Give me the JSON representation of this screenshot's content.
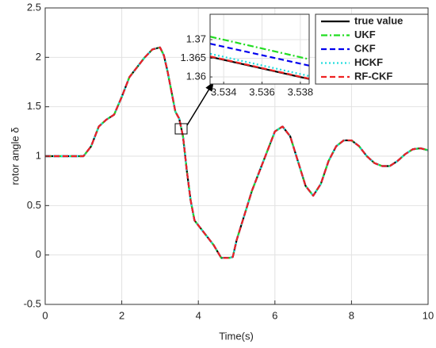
{
  "chart_data": [
    {
      "type": "line",
      "xlabel": "Time(s)",
      "ylabel": "rotor angle δ",
      "x": [
        0,
        0.5,
        1,
        1.2,
        1.4,
        1.6,
        1.8,
        2.0,
        2.2,
        2.4,
        2.6,
        2.8,
        3.0,
        3.1,
        3.2,
        3.3,
        3.4,
        3.5,
        3.6,
        3.7,
        3.8,
        3.9,
        4.0,
        4.2,
        4.4,
        4.6,
        4.8,
        4.9,
        5.0,
        5.2,
        5.4,
        5.6,
        5.8,
        6.0,
        6.2,
        6.4,
        6.6,
        6.8,
        7.0,
        7.2,
        7.4,
        7.6,
        7.8,
        8.0,
        8.2,
        8.4,
        8.6,
        8.8,
        9.0,
        9.2,
        9.4,
        9.6,
        9.8,
        10
      ],
      "series": [
        {
          "name": "true value",
          "color": "#000000",
          "linestyle": "solid",
          "values": [
            1,
            1,
            1.0,
            1.1,
            1.3,
            1.37,
            1.42,
            1.6,
            1.8,
            1.9,
            2.0,
            2.08,
            2.1,
            2.02,
            1.85,
            1.65,
            1.45,
            1.38,
            1.2,
            0.85,
            0.55,
            0.35,
            0.3,
            0.2,
            0.1,
            -0.03,
            -0.03,
            -0.02,
            0.15,
            0.4,
            0.65,
            0.85,
            1.05,
            1.25,
            1.3,
            1.2,
            0.95,
            0.7,
            0.6,
            0.72,
            0.95,
            1.1,
            1.16,
            1.16,
            1.1,
            1.0,
            0.93,
            0.9,
            0.9,
            0.95,
            1.02,
            1.07,
            1.08,
            1.06
          ]
        },
        {
          "name": "UKF",
          "color": "#22dd22",
          "linestyle": "dashdot",
          "values": [
            1,
            1,
            1.0,
            1.1,
            1.3,
            1.37,
            1.42,
            1.6,
            1.8,
            1.9,
            2.0,
            2.08,
            2.1,
            2.02,
            1.85,
            1.65,
            1.45,
            1.38,
            1.2,
            0.85,
            0.55,
            0.35,
            0.3,
            0.2,
            0.1,
            -0.03,
            -0.03,
            -0.02,
            0.15,
            0.4,
            0.65,
            0.85,
            1.05,
            1.25,
            1.3,
            1.2,
            0.95,
            0.7,
            0.6,
            0.72,
            0.95,
            1.1,
            1.16,
            1.16,
            1.1,
            1.0,
            0.93,
            0.9,
            0.9,
            0.95,
            1.02,
            1.07,
            1.08,
            1.06
          ]
        },
        {
          "name": "CKF",
          "color": "#0000ee",
          "linestyle": "dashed",
          "values": [
            1,
            1,
            1.0,
            1.1,
            1.3,
            1.37,
            1.42,
            1.6,
            1.8,
            1.9,
            2.0,
            2.08,
            2.1,
            2.02,
            1.85,
            1.65,
            1.45,
            1.38,
            1.2,
            0.85,
            0.55,
            0.35,
            0.3,
            0.2,
            0.1,
            -0.03,
            -0.03,
            -0.02,
            0.15,
            0.4,
            0.65,
            0.85,
            1.05,
            1.25,
            1.3,
            1.2,
            0.95,
            0.7,
            0.6,
            0.72,
            0.95,
            1.1,
            1.16,
            1.16,
            1.1,
            1.0,
            0.93,
            0.9,
            0.9,
            0.95,
            1.02,
            1.07,
            1.08,
            1.06
          ]
        },
        {
          "name": "HCKF",
          "color": "#22dddd",
          "linestyle": "dotted",
          "values": [
            1,
            1,
            1.0,
            1.1,
            1.3,
            1.37,
            1.42,
            1.6,
            1.8,
            1.9,
            2.0,
            2.08,
            2.1,
            2.02,
            1.85,
            1.65,
            1.45,
            1.38,
            1.2,
            0.85,
            0.55,
            0.35,
            0.3,
            0.2,
            0.1,
            -0.03,
            -0.03,
            -0.02,
            0.15,
            0.4,
            0.65,
            0.85,
            1.05,
            1.25,
            1.3,
            1.2,
            0.95,
            0.7,
            0.6,
            0.72,
            0.95,
            1.1,
            1.16,
            1.16,
            1.1,
            1.0,
            0.93,
            0.9,
            0.9,
            0.95,
            1.02,
            1.07,
            1.08,
            1.06
          ]
        },
        {
          "name": "RF-CKF",
          "color": "#ee2222",
          "linestyle": "dashed",
          "values": [
            1,
            1,
            1.0,
            1.1,
            1.3,
            1.37,
            1.42,
            1.6,
            1.8,
            1.9,
            2.0,
            2.08,
            2.1,
            2.02,
            1.85,
            1.65,
            1.45,
            1.38,
            1.2,
            0.85,
            0.55,
            0.35,
            0.3,
            0.2,
            0.1,
            -0.03,
            -0.03,
            -0.02,
            0.15,
            0.4,
            0.65,
            0.85,
            1.05,
            1.25,
            1.3,
            1.2,
            0.95,
            0.7,
            0.6,
            0.72,
            0.95,
            1.1,
            1.16,
            1.16,
            1.1,
            1.0,
            0.93,
            0.9,
            0.9,
            0.95,
            1.02,
            1.07,
            1.08,
            1.06
          ]
        }
      ],
      "xlim": [
        0,
        10
      ],
      "xticks": [
        0,
        2,
        4,
        6,
        8,
        10
      ],
      "ylim": [
        -0.5,
        2.5
      ],
      "yticks": [
        -0.5,
        0,
        0.5,
        1,
        1.5,
        2,
        2.5
      ],
      "grid": true,
      "legend": "upper right"
    },
    {
      "type": "line",
      "x": [
        3.5333,
        3.5385
      ],
      "series": [
        {
          "color": "#000000",
          "linestyle": "solid",
          "values": [
            1.3654,
            1.3594
          ]
        },
        {
          "color": "#22dd22",
          "linestyle": "dashdot",
          "values": [
            1.3708,
            1.3647
          ]
        },
        {
          "color": "#0000ee",
          "linestyle": "dashed",
          "values": [
            1.3689,
            1.363
          ]
        },
        {
          "color": "#22dddd",
          "linestyle": "dotted",
          "values": [
            1.3662,
            1.3602
          ]
        },
        {
          "color": "#ee2222",
          "linestyle": "dashed",
          "values": [
            1.3655,
            1.3595
          ]
        }
      ],
      "xlim": [
        3.53329,
        3.53846
      ],
      "xticks": [
        3.534,
        3.536,
        3.538
      ],
      "ylim": [
        1.3581,
        1.3768
      ],
      "yticks": [
        1.36,
        1.365,
        1.37
      ],
      "grid": true
    }
  ]
}
